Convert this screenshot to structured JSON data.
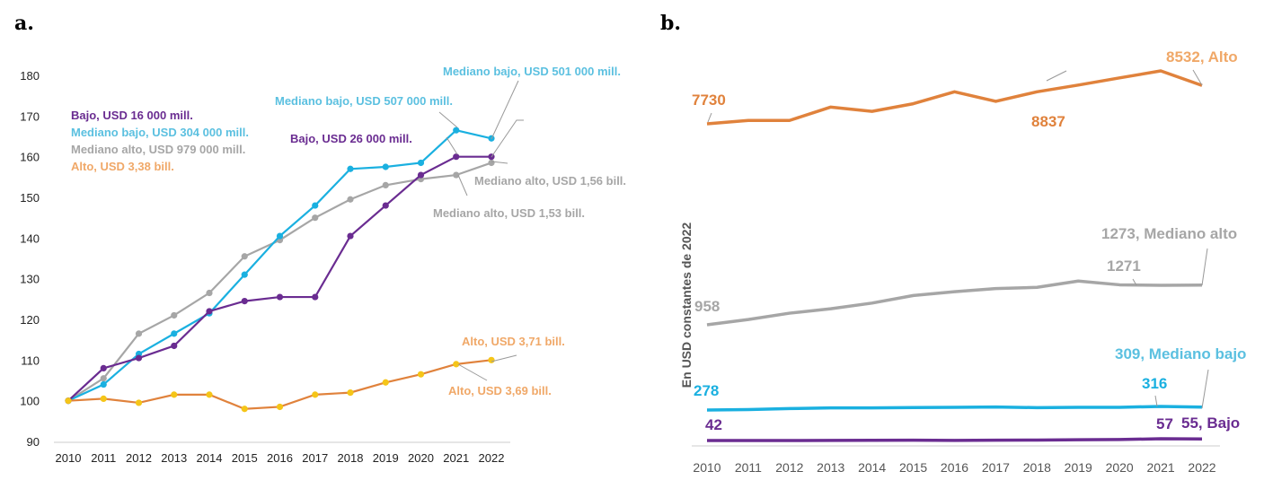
{
  "colors": {
    "bajo": "#6a2c91",
    "mediano_bajo": "#1ab0e0",
    "mediano_alto": "#a6a6a6",
    "alto": "#e0823c",
    "alto_marker": "#f5c518",
    "alto_label": "#f0a868",
    "mediano_bajo_label": "#5bc0e0"
  },
  "chart_data": [
    {
      "panel": "a.",
      "type": "line",
      "x": [
        2010,
        2011,
        2012,
        2013,
        2014,
        2015,
        2016,
        2017,
        2018,
        2019,
        2020,
        2021,
        2022
      ],
      "ylim": [
        90,
        180
      ],
      "yticks": [
        90,
        100,
        110,
        120,
        130,
        140,
        150,
        160,
        170,
        180
      ],
      "series": [
        {
          "name": "Bajo",
          "values": [
            100,
            108,
            110.5,
            113.5,
            122,
            124.5,
            125.5,
            125.5,
            140.5,
            148,
            155.5,
            160,
            160
          ]
        },
        {
          "name": "Mediano bajo",
          "values": [
            100,
            104,
            111.5,
            116.5,
            121.5,
            131,
            140.5,
            148,
            157,
            157.5,
            158.5,
            166.5,
            164.5
          ]
        },
        {
          "name": "Mediano alto",
          "values": [
            100,
            105.5,
            116.5,
            121,
            126.5,
            135.5,
            139.5,
            145,
            149.5,
            153,
            154.5,
            155.5,
            158.5
          ]
        },
        {
          "name": "Alto",
          "values": [
            100,
            100.5,
            99.5,
            101.5,
            101.5,
            98,
            98.5,
            101.5,
            102,
            104.5,
            106.5,
            109,
            110
          ]
        }
      ],
      "annotations": {
        "legend_bajo": "Bajo, USD 16 000 mill.",
        "legend_mediano_bajo": "Mediano bajo, USD 304 000 mill.",
        "legend_mediano_alto": "Mediano alto, USD 979 000 mill.",
        "legend_alto": "Alto, USD 3,38 bill.",
        "mb_2021": "Mediano bajo, USD 507 000 mill.",
        "mb_2022": "Mediano bajo, USD 501 000 mill.",
        "bajo_2021": "Bajo, USD 26 000 mill.",
        "ma_2022": "Mediano alto, USD 1,56 bill.",
        "ma_2021": "Mediano alto, USD 1,53 bill.",
        "alto_2022": "Alto, USD 3,71 bill.",
        "alto_2021": "Alto, USD 3,69 bill."
      }
    },
    {
      "panel": "b.",
      "type": "line",
      "ylabel": "En USD constantes de 2022",
      "x": [
        2010,
        2011,
        2012,
        2013,
        2014,
        2015,
        2016,
        2017,
        2018,
        2019,
        2020,
        2021,
        2022
      ],
      "series": [
        {
          "name": "Alto",
          "values": [
            7730,
            7800,
            7800,
            8080,
            7990,
            8150,
            8400,
            8200,
            8400,
            8540,
            8690,
            8837,
            8532
          ]
        },
        {
          "name": "Mediano alto",
          "values": [
            958,
            1000,
            1050,
            1085,
            1130,
            1190,
            1220,
            1245,
            1255,
            1305,
            1275,
            1271,
            1273
          ]
        },
        {
          "name": "Mediano bajo",
          "values": [
            278,
            283,
            293,
            300,
            301,
            304,
            307,
            310,
            303,
            306,
            307,
            316,
            309
          ]
        },
        {
          "name": "Bajo",
          "values": [
            42,
            42,
            42,
            43,
            44,
            45,
            43,
            45,
            46,
            49,
            50,
            57,
            55
          ]
        }
      ],
      "annotations": {
        "alto_start": "7730",
        "alto_2021": "8837",
        "alto_end": "8532, Alto",
        "ma_start": "958",
        "ma_2021": "1271",
        "ma_end": "1273, Mediano alto",
        "mb_start": "278",
        "mb_2021": "316",
        "mb_end": "309, Mediano bajo",
        "bajo_start": "42",
        "bajo_2021": "57",
        "bajo_end": "55, Bajo"
      }
    }
  ]
}
